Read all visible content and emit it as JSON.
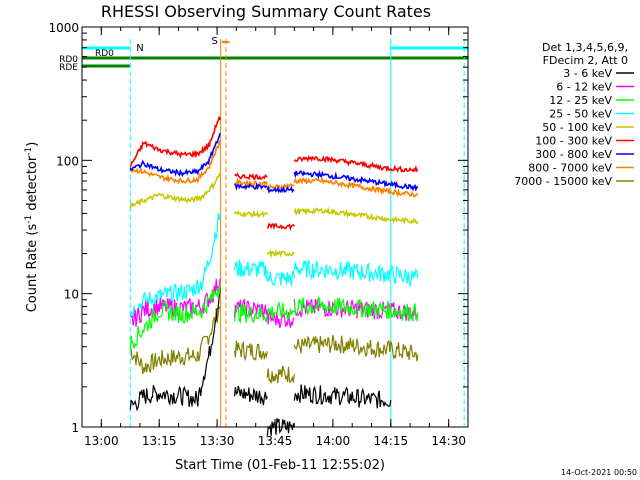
{
  "chart_data": {
    "type": "line",
    "title": "RHESSI Observing Summary Count Rates",
    "xlabel": "Start Time (01-Feb-11 12:55:02)",
    "ylabel_main": "Count Rate (s",
    "ylabel_sup1": "-1",
    "ylabel_mid": " detector",
    "ylabel_sup2": "-1",
    "ylabel_end": ")",
    "x_range_minutes": [
      0,
      100
    ],
    "x_ticks": [
      {
        "label": "13:00",
        "t": 5
      },
      {
        "label": "13:15",
        "t": 20
      },
      {
        "label": "13:30",
        "t": 35
      },
      {
        "label": "13:45",
        "t": 50
      },
      {
        "label": "14:00",
        "t": 65
      },
      {
        "label": "14:15",
        "t": 80
      },
      {
        "label": "14:30",
        "t": 95
      }
    ],
    "y_scale": "log",
    "y_range": [
      1,
      1000
    ],
    "y_ticks": [
      {
        "label": "1",
        "v": 1
      },
      {
        "label": "10",
        "v": 10
      },
      {
        "label": "100",
        "v": 100
      },
      {
        "label": "1000",
        "v": 1000
      }
    ],
    "legend_header": [
      "Det 1,3,4,5,6,9,",
      "FDecim 2, Att 0"
    ],
    "series": [
      {
        "name": "3 - 6 keV",
        "color": "#000000",
        "segments": [
          [
            [
              12.5,
              1.4
            ],
            [
              16,
              1.7
            ],
            [
              20,
              1.8
            ],
            [
              26,
              1.7
            ],
            [
              30,
              1.6
            ],
            [
              31.5,
              2.5
            ],
            [
              33,
              3.5
            ],
            [
              34.5,
              6.5
            ],
            [
              35.8,
              11
            ]
          ],
          [
            [
              39.5,
              1.8
            ],
            [
              48,
              1.7
            ]
          ],
          [
            [
              48,
              1.0
            ],
            [
              55,
              1.0
            ]
          ],
          [
            [
              55,
              1.8
            ],
            [
              68,
              1.7
            ],
            [
              75,
              1.6
            ],
            [
              80,
              1.6
            ]
          ]
        ]
      },
      {
        "name": "6 - 12 keV",
        "color": "#ff00ff",
        "segments": [
          [
            [
              12.5,
              6
            ],
            [
              16,
              7.5
            ],
            [
              20,
              8
            ],
            [
              26,
              7.8
            ],
            [
              31,
              8
            ],
            [
              34,
              10
            ],
            [
              35.8,
              13
            ]
          ],
          [
            [
              39.5,
              7.8
            ],
            [
              48,
              7.5
            ]
          ],
          [
            [
              48,
              6.5
            ],
            [
              55,
              6.5
            ]
          ],
          [
            [
              55,
              7.8
            ],
            [
              66,
              7.8
            ],
            [
              80,
              7.4
            ],
            [
              87,
              7.2
            ]
          ]
        ]
      },
      {
        "name": "12 - 25 keV",
        "color": "#00ff00",
        "segments": [
          [
            [
              12.5,
              4.2
            ],
            [
              16,
              5.5
            ],
            [
              20,
              7.5
            ],
            [
              26,
              7
            ],
            [
              31,
              7.5
            ],
            [
              34,
              9.5
            ],
            [
              35.8,
              12
            ]
          ],
          [
            [
              39.5,
              7.2
            ],
            [
              48,
              7
            ]
          ],
          [
            [
              48,
              7.3
            ],
            [
              55,
              7.3
            ]
          ],
          [
            [
              55,
              8
            ],
            [
              66,
              8
            ],
            [
              80,
              7.5
            ],
            [
              87,
              7.2
            ]
          ]
        ]
      },
      {
        "name": "25 - 50 keV",
        "color": "#00ffff",
        "segments": [
          [
            [
              12.5,
              7.2
            ],
            [
              16,
              8.8
            ],
            [
              20,
              9.5
            ],
            [
              24,
              10
            ],
            [
              28,
              10.5
            ],
            [
              31,
              12
            ],
            [
              33,
              18
            ],
            [
              34.5,
              28
            ],
            [
              35.8,
              40
            ]
          ],
          [
            [
              39.5,
              15.5
            ],
            [
              48,
              15
            ]
          ],
          [
            [
              48,
              13
            ],
            [
              55,
              13
            ]
          ],
          [
            [
              55,
              15.5
            ],
            [
              66,
              15
            ],
            [
              80,
              14
            ],
            [
              87,
              13
            ]
          ]
        ]
      },
      {
        "name": "50 - 100 keV",
        "color": "#ffff00",
        "stroke": "#c8c800",
        "segments": [
          [
            [
              12.5,
              45
            ],
            [
              16,
              50
            ],
            [
              20,
              55
            ],
            [
              24,
              52
            ],
            [
              28,
              50
            ],
            [
              31,
              53
            ],
            [
              34,
              65
            ],
            [
              35.8,
              80
            ]
          ],
          [
            [
              39.5,
              40
            ],
            [
              48,
              39
            ]
          ],
          [
            [
              48,
              20
            ],
            [
              55,
              20
            ]
          ],
          [
            [
              55,
              41
            ],
            [
              62,
              42
            ],
            [
              68,
              40
            ],
            [
              74,
              38
            ],
            [
              80,
              36
            ],
            [
              87,
              35
            ]
          ]
        ]
      },
      {
        "name": "100 - 300 keV",
        "color": "#ff0000",
        "segments": [
          [
            [
              12.5,
              90
            ],
            [
              16,
              135
            ],
            [
              20,
              120
            ],
            [
              26,
              110
            ],
            [
              30,
              112
            ],
            [
              33,
              130
            ],
            [
              34.5,
              175
            ],
            [
              35.5,
              210
            ],
            [
              35.8,
              200
            ]
          ],
          [
            [
              39.5,
              76
            ],
            [
              48,
              75
            ]
          ],
          [
            [
              48,
              32
            ],
            [
              55,
              32
            ]
          ],
          [
            [
              55,
              100
            ],
            [
              60,
              105
            ],
            [
              66,
              100
            ],
            [
              72,
              94
            ],
            [
              78,
              88
            ],
            [
              84,
              85
            ],
            [
              87,
              85
            ]
          ]
        ]
      },
      {
        "name": "300 - 800 keV",
        "color": "#0000ff",
        "segments": [
          [
            [
              12.5,
              85
            ],
            [
              16,
              95
            ],
            [
              20,
              85
            ],
            [
              26,
              80
            ],
            [
              30,
              82
            ],
            [
              33,
              100
            ],
            [
              34.5,
              130
            ],
            [
              35.8,
              160
            ]
          ],
          [
            [
              39.5,
              64
            ],
            [
              48,
              63
            ]
          ],
          [
            [
              48,
              60
            ],
            [
              55,
              60
            ]
          ],
          [
            [
              55,
              80
            ],
            [
              62,
              78
            ],
            [
              68,
              74
            ],
            [
              74,
              70
            ],
            [
              80,
              66
            ],
            [
              87,
              62
            ]
          ]
        ]
      },
      {
        "name": "800 - 7000 keV",
        "color": "#ff8000",
        "segments": [
          [
            [
              12.5,
              86
            ],
            [
              16,
              82
            ],
            [
              20,
              75
            ],
            [
              26,
              70
            ],
            [
              30,
              72
            ],
            [
              33,
              90
            ],
            [
              34.5,
              115
            ],
            [
              35.8,
              140
            ]
          ],
          [
            [
              39.5,
              68
            ],
            [
              48,
              67
            ]
          ],
          [
            [
              48,
              62
            ],
            [
              55,
              65
            ]
          ],
          [
            [
              55,
              70
            ],
            [
              62,
              70
            ],
            [
              68,
              66
            ],
            [
              74,
              62
            ],
            [
              80,
              58
            ],
            [
              87,
              55
            ]
          ]
        ]
      },
      {
        "name": "7000 - 15000 keV",
        "color": "#808000",
        "segments": [
          [
            [
              12.5,
              3.8
            ],
            [
              16,
              2.8
            ],
            [
              20,
              3.2
            ],
            [
              26,
              3.4
            ],
            [
              30,
              3.4
            ],
            [
              33,
              5
            ],
            [
              35.8,
              8
            ]
          ],
          [
            [
              39.5,
              3.8
            ],
            [
              48,
              3.7
            ]
          ],
          [
            [
              48,
              2.5
            ],
            [
              55,
              2.5
            ]
          ],
          [
            [
              55,
              4
            ],
            [
              66,
              4.2
            ],
            [
              80,
              3.8
            ],
            [
              87,
              3.5
            ]
          ]
        ]
      }
    ],
    "flag_bars": [
      {
        "label": "",
        "color": "#00ffff",
        "segments": [
          [
            0,
            12.5
          ],
          [
            80,
            100
          ]
        ]
      },
      {
        "label": "RD0",
        "color": "#008000",
        "segments": [
          [
            0,
            12.5
          ],
          [
            12.5,
            46
          ],
          [
            46,
            53.5
          ],
          [
            53.5,
            100
          ]
        ]
      },
      {
        "label": "RDE",
        "color": "#008000",
        "segments": [
          [
            0,
            12.5
          ]
        ]
      }
    ],
    "event_markers": [
      {
        "label": "N",
        "color": "#00ffff",
        "t": 12.5
      },
      {
        "label": "S",
        "color": "#ff8000",
        "t": 36.5
      }
    ],
    "timestamp": "14-Oct-2021 00:50"
  }
}
